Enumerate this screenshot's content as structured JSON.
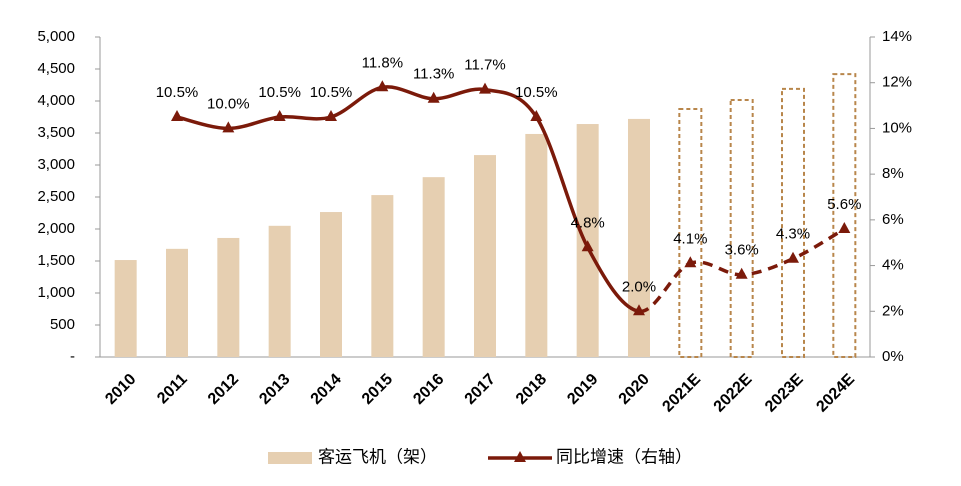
{
  "chart_data": {
    "type": "bar_line",
    "categories": [
      "2010",
      "2011",
      "2012",
      "2013",
      "2014",
      "2015",
      "2016",
      "2017",
      "2018",
      "2019",
      "2020",
      "2021E",
      "2022E",
      "2023E",
      "2024E"
    ],
    "series": [
      {
        "name": "客运飞机（架）",
        "type": "bar",
        "color": "#e6cfb1",
        "forecast_color": "#b8864b",
        "values": [
          1515,
          1690,
          1860,
          2050,
          2265,
          2530,
          2810,
          3155,
          3485,
          3640,
          3720,
          3875,
          4015,
          4190,
          4420
        ]
      },
      {
        "name": "同比增速（右轴）",
        "type": "line",
        "axis": "y2",
        "color": "#7b1a0a",
        "values": [
          null,
          10.5,
          10.0,
          10.5,
          10.5,
          11.8,
          11.3,
          11.7,
          10.5,
          4.8,
          2.0,
          4.1,
          3.6,
          4.3,
          5.6
        ],
        "value_labels": [
          null,
          "10.5%",
          "10.0%",
          "10.5%",
          "10.5%",
          "11.8%",
          "11.3%",
          "11.7%",
          "10.5%",
          "4.8%",
          "2.0%",
          "4.1%",
          "3.6%",
          "4.3%",
          "5.6%"
        ]
      }
    ],
    "dashed_from": "2021E",
    "ylim": [
      0,
      5000
    ],
    "yticks": [
      {
        "value": 0,
        "label": "-"
      },
      500,
      {
        "value": 1000,
        "label": "1,000"
      },
      {
        "value": 1500,
        "label": "1,500"
      },
      {
        "value": 2000,
        "label": "2,000"
      },
      {
        "value": 2500,
        "label": "2,500"
      },
      {
        "value": 3000,
        "label": "3,000"
      },
      {
        "value": 3500,
        "label": "3,500"
      },
      {
        "value": 4000,
        "label": "4,000"
      },
      {
        "value": 4500,
        "label": "4,500"
      },
      {
        "value": 5000,
        "label": "5,000"
      }
    ],
    "y2lim": [
      0,
      14
    ],
    "y2ticks": [
      {
        "value": 0,
        "label": "0%"
      },
      {
        "value": 2,
        "label": "2%"
      },
      {
        "value": 4,
        "label": "4%"
      },
      {
        "value": 6,
        "label": "6%"
      },
      {
        "value": 8,
        "label": "8%"
      },
      {
        "value": 10,
        "label": "10%"
      },
      {
        "value": 12,
        "label": "12%"
      },
      {
        "value": 14,
        "label": "14%"
      }
    ],
    "legend": "bottom"
  }
}
